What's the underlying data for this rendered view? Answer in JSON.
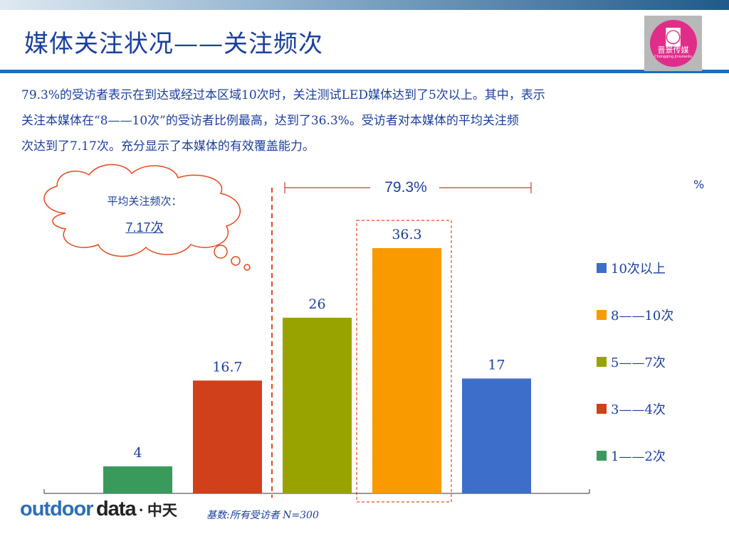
{
  "header": {
    "title": "媒体关注状况——关注频次",
    "logo_text_cn": "晋景传媒",
    "logo_text_en": "Chongqing Jinsxiantu"
  },
  "summary_lines": [
    "79.3%的受访者表示在到达或经过本区域10次时，关注测试LED媒体达到了5次以上。其中，表示",
    "关注本媒体在“8——10次”的受访者比例最高，达到了36.3%。受访者对本媒体的平均关注频",
    "次达到了7.17次。充分显示了本媒体的有效覆盖能力。"
  ],
  "callout": {
    "label": "平均关注频次：",
    "value": "7.17次"
  },
  "bracket_label": "79.3%",
  "unit_label": "%",
  "footer": {
    "logo_outdoor": "outdoor",
    "logo_data": "data",
    "logo_dot": "·",
    "logo_cn": "中天",
    "base_note": "基数:所有受访者   N=300"
  },
  "colors": {
    "title": "#1a3f9e",
    "rule": "#1a6fc0",
    "dashed": "#e34a1c",
    "bracket": "#c0402a"
  },
  "chart_data": {
    "type": "bar",
    "categories": [
      "1——2次",
      "3——4次",
      "5——7次",
      "8——10次",
      "10次以上"
    ],
    "values": [
      4,
      16.7,
      26,
      36.3,
      17
    ],
    "value_labels": [
      "4",
      "16.7",
      "26",
      "36.3",
      "17"
    ],
    "colors": [
      "#3a9a5c",
      "#d0401a",
      "#99a300",
      "#f99a00",
      "#3d6ec9"
    ],
    "legend": [
      {
        "label": "10次以上",
        "color": "#3d6ec9"
      },
      {
        "label": "8——10次",
        "color": "#f99a00"
      },
      {
        "label": "5——7次",
        "color": "#99a300"
      },
      {
        "label": "3——4次",
        "color": "#d0401a"
      },
      {
        "label": "1——2次",
        "color": "#3a9a5c"
      }
    ],
    "legend_position": "right",
    "ylim": [
      0,
      36.3
    ],
    "grid": false,
    "title": "",
    "xlabel": "",
    "ylabel": ""
  }
}
